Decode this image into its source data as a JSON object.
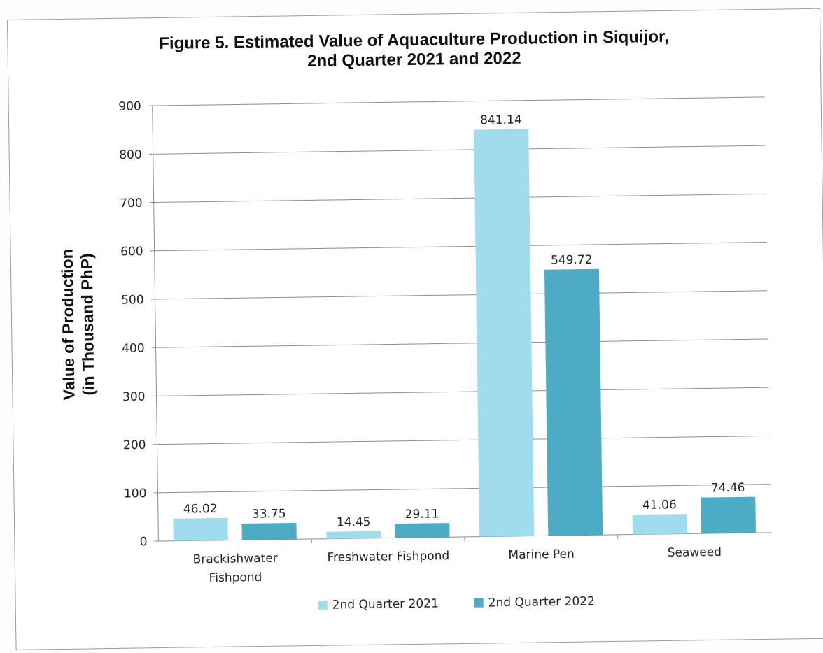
{
  "chart_data": {
    "type": "bar",
    "title": "Figure 5. Estimated Value of Aquaculture Production in Siquijor,",
    "subtitle": "2nd Quarter 2021 and 2022",
    "ylabel_line1": "Value of Production",
    "ylabel_line2": "(in Thousand PhP)",
    "xlabel": "",
    "ylim": [
      0,
      900
    ],
    "yticks": [
      "0",
      "100",
      "200",
      "300",
      "400",
      "500",
      "600",
      "700",
      "800",
      "900"
    ],
    "categories": [
      [
        "Brackishwater",
        "Fishpond"
      ],
      [
        "Freshwater Fishpond"
      ],
      [
        "Marine Pen"
      ],
      [
        "Seaweed"
      ]
    ],
    "series": [
      {
        "name": "2nd Quarter 2021",
        "color": "#9fdced",
        "values": [
          46.02,
          14.45,
          841.14,
          41.06
        ],
        "labels": [
          "46.02",
          "14.45",
          "841.14",
          "41.06"
        ]
      },
      {
        "name": "2nd Quarter 2022",
        "color": "#4eabc6",
        "values": [
          33.75,
          29.11,
          549.72,
          74.46
        ],
        "labels": [
          "33.75",
          "29.11",
          "549.72",
          "74.46"
        ]
      }
    ],
    "grid": true,
    "legend_position": "bottom"
  }
}
